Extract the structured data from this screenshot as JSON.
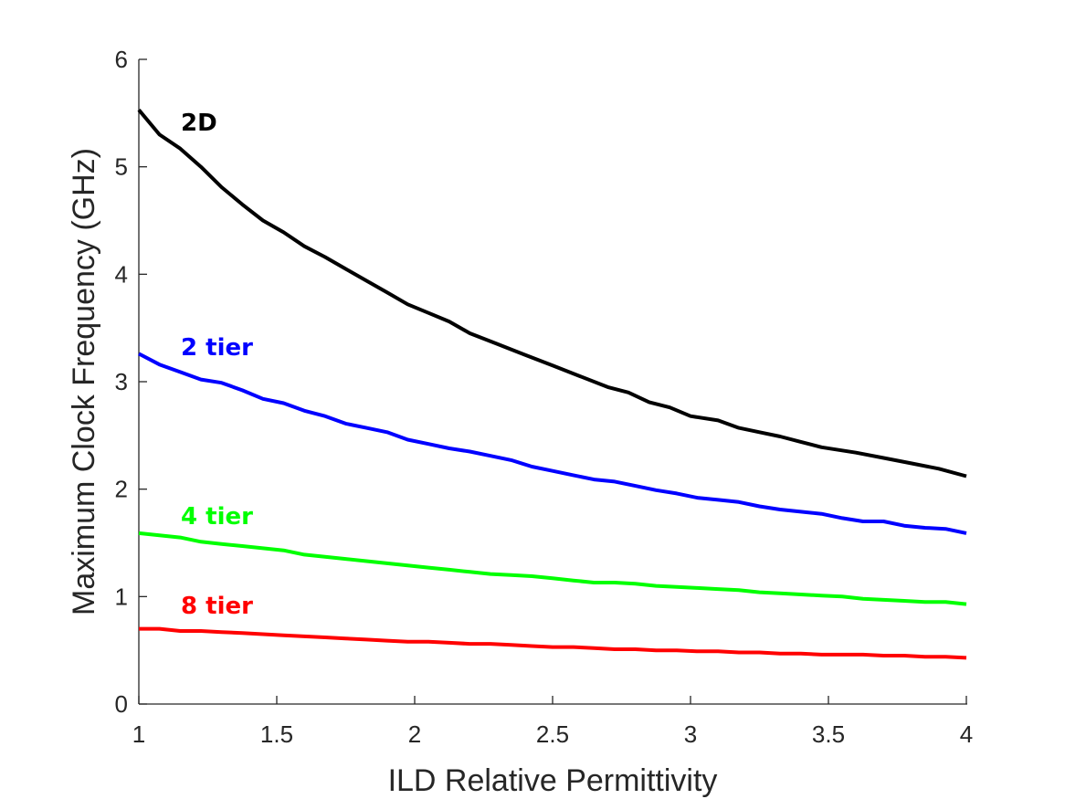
{
  "chart_data": {
    "type": "line",
    "xlabel": "ILD Relative Permittivity",
    "ylabel": "Maximum Clock Frequency (GHz)",
    "xlim": [
      1,
      4
    ],
    "ylim": [
      0,
      6
    ],
    "xticks": [
      1,
      1.5,
      2,
      2.5,
      3,
      3.5,
      4
    ],
    "xtick_labels": [
      "1",
      "1.5",
      "2",
      "2.5",
      "3",
      "3.5",
      "4"
    ],
    "yticks": [
      0,
      1,
      2,
      3,
      4,
      5,
      6
    ],
    "ytick_labels": [
      "0",
      "1",
      "2",
      "3",
      "4",
      "5",
      "6"
    ],
    "grid": false,
    "legend": "inline labels",
    "series": [
      {
        "name": "2D",
        "color": "#000000",
        "x": [
          1,
          1.075,
          1.15,
          1.225,
          1.3,
          1.375,
          1.45,
          1.525,
          1.6,
          1.675,
          1.75,
          1.825,
          1.9,
          1.975,
          2.05,
          2.125,
          2.2,
          2.3,
          2.4,
          2.5,
          2.6,
          2.7,
          2.775,
          2.85,
          2.925,
          3.0,
          3.1,
          3.175,
          3.25,
          3.325,
          3.4,
          3.475,
          3.6,
          3.7,
          3.8,
          3.9,
          4.0
        ],
        "values": [
          5.53,
          5.3,
          5.17,
          5.0,
          4.81,
          4.65,
          4.5,
          4.39,
          4.26,
          4.16,
          4.05,
          3.94,
          3.83,
          3.72,
          3.64,
          3.56,
          3.45,
          3.35,
          3.25,
          3.15,
          3.05,
          2.95,
          2.9,
          2.81,
          2.76,
          2.68,
          2.64,
          2.57,
          2.53,
          2.49,
          2.44,
          2.39,
          2.34,
          2.29,
          2.24,
          2.19,
          2.12
        ]
      },
      {
        "name": "2 tier",
        "color": "#0000ff",
        "x": [
          1,
          1.075,
          1.15,
          1.225,
          1.3,
          1.375,
          1.45,
          1.525,
          1.6,
          1.675,
          1.75,
          1.825,
          1.9,
          1.975,
          2.05,
          2.125,
          2.2,
          2.275,
          2.35,
          2.425,
          2.5,
          2.575,
          2.65,
          2.725,
          2.8,
          2.875,
          2.95,
          3.025,
          3.1,
          3.175,
          3.25,
          3.325,
          3.4,
          3.475,
          3.55,
          3.625,
          3.7,
          3.775,
          3.85,
          3.925,
          4.0
        ],
        "values": [
          3.26,
          3.16,
          3.09,
          3.02,
          2.99,
          2.92,
          2.84,
          2.8,
          2.73,
          2.68,
          2.61,
          2.57,
          2.53,
          2.46,
          2.42,
          2.38,
          2.35,
          2.31,
          2.27,
          2.21,
          2.17,
          2.13,
          2.09,
          2.07,
          2.03,
          1.99,
          1.96,
          1.92,
          1.9,
          1.88,
          1.84,
          1.81,
          1.79,
          1.77,
          1.73,
          1.7,
          1.7,
          1.66,
          1.64,
          1.63,
          1.59
        ]
      },
      {
        "name": "4 tier",
        "color": "#00ff00",
        "x": [
          1,
          1.075,
          1.15,
          1.225,
          1.3,
          1.375,
          1.45,
          1.525,
          1.6,
          1.675,
          1.75,
          1.825,
          1.9,
          1.975,
          2.05,
          2.125,
          2.2,
          2.275,
          2.35,
          2.425,
          2.5,
          2.575,
          2.65,
          2.725,
          2.8,
          2.875,
          2.95,
          3.025,
          3.1,
          3.175,
          3.25,
          3.325,
          3.4,
          3.475,
          3.55,
          3.625,
          3.7,
          3.775,
          3.85,
          3.925,
          4.0
        ],
        "values": [
          1.59,
          1.57,
          1.55,
          1.51,
          1.49,
          1.47,
          1.45,
          1.43,
          1.39,
          1.37,
          1.35,
          1.33,
          1.31,
          1.29,
          1.27,
          1.25,
          1.23,
          1.21,
          1.2,
          1.19,
          1.17,
          1.15,
          1.13,
          1.13,
          1.12,
          1.1,
          1.09,
          1.08,
          1.07,
          1.06,
          1.04,
          1.03,
          1.02,
          1.01,
          1.0,
          0.98,
          0.97,
          0.96,
          0.95,
          0.95,
          0.93
        ]
      },
      {
        "name": "8 tier",
        "color": "#ff0000",
        "x": [
          1,
          1.075,
          1.15,
          1.225,
          1.3,
          1.375,
          1.45,
          1.525,
          1.6,
          1.675,
          1.75,
          1.825,
          1.9,
          1.975,
          2.05,
          2.125,
          2.2,
          2.275,
          2.35,
          2.425,
          2.5,
          2.575,
          2.65,
          2.725,
          2.8,
          2.875,
          2.95,
          3.025,
          3.1,
          3.175,
          3.25,
          3.325,
          3.4,
          3.475,
          3.55,
          3.625,
          3.7,
          3.775,
          3.85,
          3.925,
          4.0
        ],
        "values": [
          0.7,
          0.7,
          0.68,
          0.68,
          0.67,
          0.66,
          0.65,
          0.64,
          0.63,
          0.62,
          0.61,
          0.6,
          0.59,
          0.58,
          0.58,
          0.57,
          0.56,
          0.56,
          0.55,
          0.54,
          0.53,
          0.53,
          0.52,
          0.51,
          0.51,
          0.5,
          0.5,
          0.49,
          0.49,
          0.48,
          0.48,
          0.47,
          0.47,
          0.46,
          0.46,
          0.46,
          0.45,
          0.45,
          0.44,
          0.44,
          0.43
        ]
      }
    ]
  }
}
